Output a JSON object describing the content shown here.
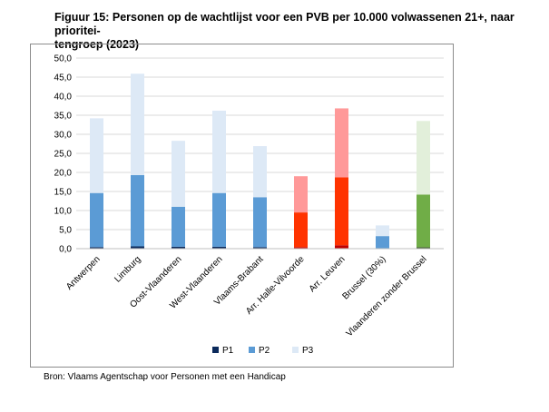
{
  "title": {
    "line1": "Figuur 15: Personen op de wachtlijst voor een PVB per 10.000 volwassenen 21+, naar prioritei-",
    "line2": "tengroep (2023)"
  },
  "source": "Bron: Vlaams Agentschap voor Personen met een Handicap",
  "chart_data": {
    "type": "bar",
    "stacked": true,
    "categories": [
      "Antwerpen",
      "Limburg",
      "Oost-Vlaanderen",
      "West-Vlaanderen",
      "Vlaams-Brabant",
      "Arr. Halle-Vilvoorde",
      "Arr. Leuven",
      "Brussel (30%)",
      "Vlaanderen zonder Brussel"
    ],
    "series": [
      {
        "name": "P1",
        "color": "#0b2a5b",
        "values": [
          0.4,
          0.6,
          0.5,
          0.5,
          0.4,
          0.4,
          0.9,
          0.1,
          0.4
        ]
      },
      {
        "name": "P2",
        "color": "#5b9bd5",
        "values": [
          14.2,
          18.7,
          10.5,
          14.1,
          13.1,
          9.1,
          17.8,
          3.2,
          13.8
        ]
      },
      {
        "name": "P3",
        "color": "#dde9f6",
        "values": [
          19.6,
          26.6,
          17.3,
          21.6,
          13.4,
          9.5,
          18.1,
          2.8,
          19.3
        ]
      }
    ],
    "bar_colors_override": [
      null,
      null,
      null,
      null,
      null,
      [
        "#c00000",
        "#ff3300",
        "#ff9999"
      ],
      [
        "#c00000",
        "#ff3300",
        "#ff9999"
      ],
      null,
      [
        "#375623",
        "#70ad47",
        "#e2efda"
      ]
    ],
    "ylim": [
      0,
      50
    ],
    "yticks": [
      "0,0",
      "5,0",
      "10,0",
      "15,0",
      "20,0",
      "25,0",
      "30,0",
      "35,0",
      "40,0",
      "45,0",
      "50,0"
    ],
    "grid": true,
    "legend_position": "bottom",
    "xlabel": "",
    "ylabel": ""
  }
}
